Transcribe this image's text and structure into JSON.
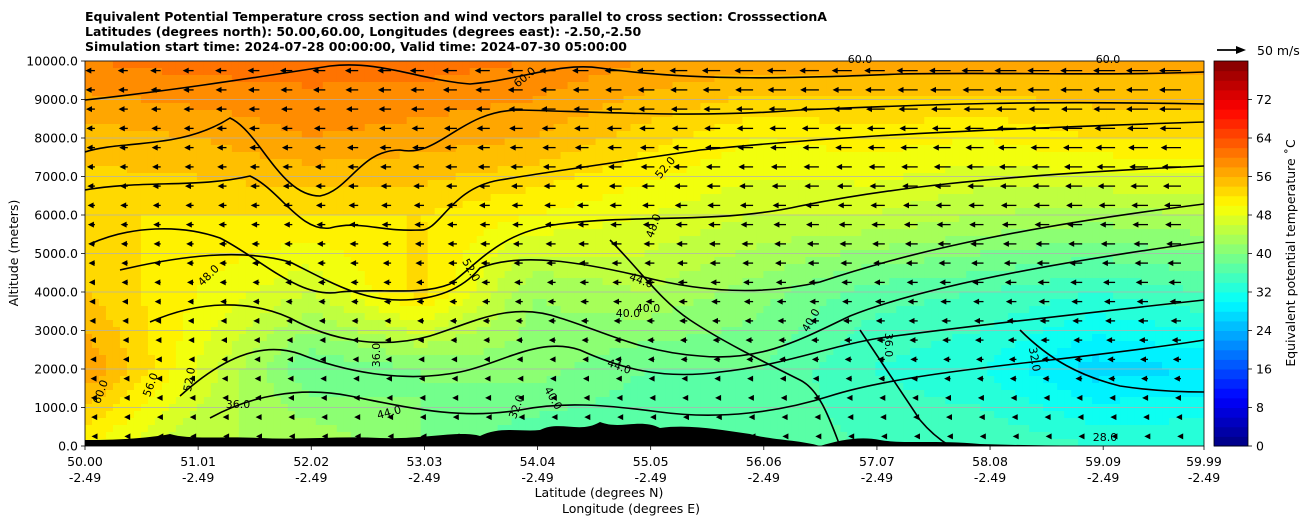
{
  "chart_data": {
    "type": "heatmap",
    "title_lines": [
      "Equivalent Potential Temperature cross section and wind vectors parallel to cross section: CrosssectionA",
      "Latitudes (degrees north): 50.00,60.00, Longitudes (degrees east): -2.50,-2.50",
      "Simulation start time: 2024-07-28 00:00:00, Valid time: 2024-07-30 05:00:00"
    ],
    "ylabel": "Altitude (meters)",
    "xlabel_lat": "Latitude (degrees N)",
    "xlabel_lon": "Longitude (degrees E)",
    "ylim": [
      0,
      10000
    ],
    "yticks": [
      "0.0",
      "1000.0",
      "2000.0",
      "3000.0",
      "4000.0",
      "5000.0",
      "6000.0",
      "7000.0",
      "8000.0",
      "9000.0",
      "10000.0"
    ],
    "xlim": [
      50.0,
      59.99
    ],
    "xticks_lat": [
      "50.00",
      "51.01",
      "52.02",
      "53.03",
      "54.04",
      "55.05",
      "56.06",
      "57.07",
      "58.08",
      "59.09",
      "59.99"
    ],
    "xticks_lon": [
      "-2.49",
      "-2.49",
      "-2.49",
      "-2.49",
      "-2.49",
      "-2.49",
      "-2.49",
      "-2.49",
      "-2.49",
      "-2.49",
      "-2.49"
    ],
    "horizontal_grid": true,
    "colorbar": {
      "label": "Equivalent potential temperature ˚C",
      "range": [
        0,
        80
      ],
      "ticks": [
        "0",
        "8",
        "16",
        "24",
        "32",
        "40",
        "48",
        "56",
        "64",
        "72"
      ],
      "colormap": "jet"
    },
    "quiver_key": {
      "label": "50 m/s",
      "value": 50
    },
    "contour_labels": [
      "60.0",
      "56.0",
      "52.0",
      "48.0",
      "44.0",
      "40.0",
      "36.0",
      "32.0",
      "28.0"
    ],
    "approx_field_columns": [
      {
        "lat": 50.0,
        "surface": 50,
        "km2": 58,
        "km4": 54,
        "km6": 52,
        "km8": 55,
        "km10": 60
      },
      {
        "lat": 51.0,
        "surface": 44,
        "km2": 48,
        "km4": 50,
        "km6": 52,
        "km8": 56,
        "km10": 61
      },
      {
        "lat": 52.0,
        "surface": 44,
        "km2": 38,
        "km4": 46,
        "km6": 52,
        "km8": 58,
        "km10": 61
      },
      {
        "lat": 53.0,
        "surface": 40,
        "km2": 40,
        "km4": 53,
        "km6": 52,
        "km8": 57,
        "km10": 61
      },
      {
        "lat": 54.0,
        "surface": 36,
        "km2": 41,
        "km4": 42,
        "km6": 50,
        "km8": 56,
        "km10": 60
      },
      {
        "lat": 55.0,
        "surface": 36,
        "km2": 38,
        "km4": 44,
        "km6": 48,
        "km8": 53,
        "km10": 58
      },
      {
        "lat": 56.0,
        "surface": 37,
        "km2": 38,
        "km4": 41,
        "km6": 46,
        "km8": 50,
        "km10": 57
      },
      {
        "lat": 57.0,
        "surface": 36,
        "km2": 34,
        "km4": 37,
        "km6": 46,
        "km8": 51,
        "km10": 57
      },
      {
        "lat": 58.0,
        "surface": 36,
        "km2": 32,
        "km4": 36,
        "km6": 44,
        "km8": 50,
        "km10": 57
      },
      {
        "lat": 59.0,
        "surface": 34,
        "km2": 27,
        "km4": 34,
        "km6": 43,
        "km8": 52,
        "km10": 57
      },
      {
        "lat": 59.99,
        "surface": 34,
        "km2": 28,
        "km4": 36,
        "km6": 44,
        "km8": 52,
        "km10": 57
      }
    ]
  }
}
